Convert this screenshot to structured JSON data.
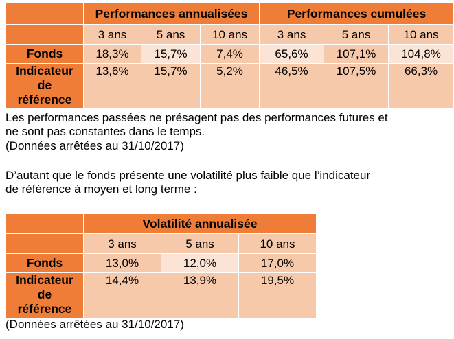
{
  "table1": {
    "group_headers": [
      "Performances annualisées",
      "Performances cumulées"
    ],
    "periods": [
      "3 ans",
      "5 ans",
      "10 ans",
      "3 ans",
      "5 ans",
      "10 ans"
    ],
    "rows": [
      {
        "label": "Fonds",
        "values": [
          "18,3%",
          "15,7%",
          "7,4%",
          "65,6%",
          "107,1%",
          "104,8%"
        ]
      },
      {
        "label_lines": [
          "Indicateur",
          "de",
          "référence"
        ],
        "values": [
          "13,6%",
          "15,7%",
          "5,2%",
          "46,5%",
          "107,5%",
          "66,3%"
        ]
      }
    ]
  },
  "text": {
    "line1": "Les performances passées ne présagent pas des performances futures et",
    "line2": "ne sont pas constantes dans le temps.",
    "line3": "(Données arrêtées au 31/10/2017)",
    "line4": "D’autant que le fonds présente une volatilité plus faible que l’indicateur",
    "line5": "de référence à moyen et long terme :"
  },
  "table2": {
    "header": "Volatilité annualisée",
    "periods": [
      "3 ans",
      "5 ans",
      "10 ans"
    ],
    "rows": [
      {
        "label": "Fonds",
        "values": [
          "13,0%",
          "12,0%",
          "17,0%"
        ]
      },
      {
        "label_lines": [
          "Indicateur",
          "de",
          "référence"
        ],
        "values": [
          "14,4%",
          "13,9%",
          "19,5%"
        ]
      }
    ]
  },
  "footnote": "(Données arrêtées au 31/10/2017)"
}
